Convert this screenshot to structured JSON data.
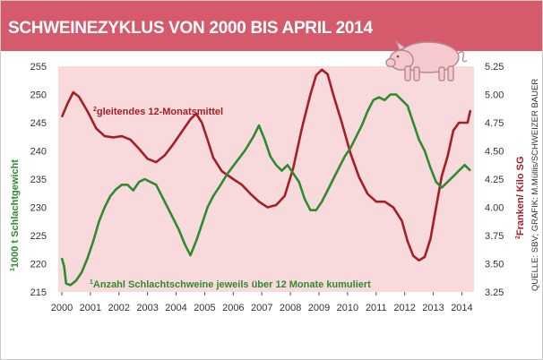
{
  "chart_data": {
    "type": "line",
    "title": "SCHWEINEZYKLUS VON 2000 BIS APRIL 2014",
    "source": "QUELLE: SBV; GRAFIK: M.Müllis/SCHWEIZER BAUER",
    "x_ticks": [
      "2000",
      "2001",
      "2002",
      "2003",
      "2004",
      "2005",
      "2006",
      "2007",
      "2008",
      "2009",
      "2010",
      "2011",
      "2012",
      "2013",
      "2014"
    ],
    "xlim": [
      2000,
      2014.3
    ],
    "left_axis": {
      "label_sup": "1",
      "label": "1000 t Schlachtgewicht",
      "ylim": [
        215,
        255
      ],
      "ticks": [
        "255",
        "250",
        "245",
        "240",
        "235",
        "230",
        "225",
        "220",
        "215"
      ]
    },
    "right_axis": {
      "label_sup": "2",
      "label": "Franken/ Kilo SG",
      "ylim": [
        3.25,
        5.25
      ],
      "ticks": [
        "5.25",
        "5.00",
        "4.75",
        "4.50",
        "4.25",
        "4.00",
        "3.75",
        "3.50",
        "3.25"
      ]
    },
    "series": [
      {
        "name": "gleitendes 12-Monatsmittel",
        "sup": "2",
        "axis": "right",
        "color": "#a51e24",
        "points": [
          [
            2000.0,
            4.8
          ],
          [
            2000.2,
            4.92
          ],
          [
            2000.4,
            5.02
          ],
          [
            2000.6,
            4.98
          ],
          [
            2000.9,
            4.85
          ],
          [
            2001.2,
            4.7
          ],
          [
            2001.5,
            4.63
          ],
          [
            2001.8,
            4.62
          ],
          [
            2002.1,
            4.63
          ],
          [
            2002.4,
            4.6
          ],
          [
            2002.7,
            4.52
          ],
          [
            2003.0,
            4.43
          ],
          [
            2003.3,
            4.4
          ],
          [
            2003.6,
            4.46
          ],
          [
            2003.9,
            4.56
          ],
          [
            2004.2,
            4.67
          ],
          [
            2004.5,
            4.78
          ],
          [
            2004.7,
            4.83
          ],
          [
            2004.9,
            4.75
          ],
          [
            2005.1,
            4.6
          ],
          [
            2005.3,
            4.44
          ],
          [
            2005.6,
            4.32
          ],
          [
            2006.0,
            4.25
          ],
          [
            2006.3,
            4.2
          ],
          [
            2006.6,
            4.12
          ],
          [
            2006.9,
            4.05
          ],
          [
            2007.2,
            4.0
          ],
          [
            2007.5,
            4.02
          ],
          [
            2007.8,
            4.1
          ],
          [
            2008.1,
            4.35
          ],
          [
            2008.4,
            4.7
          ],
          [
            2008.7,
            5.0
          ],
          [
            2008.9,
            5.17
          ],
          [
            2009.1,
            5.22
          ],
          [
            2009.3,
            5.18
          ],
          [
            2009.5,
            5.0
          ],
          [
            2009.8,
            4.75
          ],
          [
            2010.1,
            4.48
          ],
          [
            2010.4,
            4.27
          ],
          [
            2010.7,
            4.12
          ],
          [
            2011.0,
            4.05
          ],
          [
            2011.3,
            4.05
          ],
          [
            2011.6,
            4.0
          ],
          [
            2011.9,
            3.88
          ],
          [
            2012.1,
            3.7
          ],
          [
            2012.3,
            3.57
          ],
          [
            2012.5,
            3.53
          ],
          [
            2012.7,
            3.56
          ],
          [
            2012.9,
            3.72
          ],
          [
            2013.1,
            4.0
          ],
          [
            2013.3,
            4.28
          ],
          [
            2013.5,
            4.45
          ],
          [
            2013.7,
            4.68
          ],
          [
            2013.9,
            4.75
          ],
          [
            2014.1,
            4.75
          ],
          [
            2014.2,
            4.75
          ],
          [
            2014.3,
            4.86
          ]
        ]
      },
      {
        "name": "Anzahl Schlachtschweine jeweils über 12 Monate kumuliert",
        "sup": "1",
        "axis": "left",
        "color": "#2e8b2e",
        "points": [
          [
            2000.0,
            221.0
          ],
          [
            2000.08,
            219.5
          ],
          [
            2000.15,
            216.5
          ],
          [
            2000.3,
            216.2
          ],
          [
            2000.5,
            217.0
          ],
          [
            2000.7,
            218.5
          ],
          [
            2000.9,
            221.0
          ],
          [
            2001.1,
            224.0
          ],
          [
            2001.3,
            227.5
          ],
          [
            2001.5,
            230.0
          ],
          [
            2001.7,
            232.0
          ],
          [
            2001.9,
            233.2
          ],
          [
            2002.1,
            234.0
          ],
          [
            2002.3,
            234.0
          ],
          [
            2002.5,
            233.0
          ],
          [
            2002.7,
            234.5
          ],
          [
            2002.9,
            235.0
          ],
          [
            2003.1,
            234.5
          ],
          [
            2003.3,
            234.0
          ],
          [
            2003.5,
            232.0
          ],
          [
            2003.7,
            230.0
          ],
          [
            2003.9,
            228.0
          ],
          [
            2004.1,
            226.0
          ],
          [
            2004.3,
            223.5
          ],
          [
            2004.5,
            221.5
          ],
          [
            2004.7,
            224.0
          ],
          [
            2004.9,
            227.0
          ],
          [
            2005.1,
            230.0
          ],
          [
            2005.3,
            232.0
          ],
          [
            2005.5,
            233.5
          ],
          [
            2005.8,
            236.0
          ],
          [
            2006.1,
            238.0
          ],
          [
            2006.4,
            240.0
          ],
          [
            2006.7,
            242.5
          ],
          [
            2006.9,
            244.5
          ],
          [
            2007.1,
            242.0
          ],
          [
            2007.3,
            239.0
          ],
          [
            2007.5,
            237.5
          ],
          [
            2007.7,
            236.5
          ],
          [
            2007.9,
            237.5
          ],
          [
            2008.1,
            236.0
          ],
          [
            2008.3,
            234.5
          ],
          [
            2008.5,
            231.5
          ],
          [
            2008.7,
            229.5
          ],
          [
            2008.9,
            229.5
          ],
          [
            2009.1,
            231.0
          ],
          [
            2009.3,
            233.0
          ],
          [
            2009.5,
            235.0
          ],
          [
            2009.7,
            237.0
          ],
          [
            2009.9,
            239.0
          ],
          [
            2010.1,
            240.5
          ],
          [
            2010.3,
            242.5
          ],
          [
            2010.5,
            244.5
          ],
          [
            2010.7,
            247.0
          ],
          [
            2010.9,
            249.0
          ],
          [
            2011.1,
            249.5
          ],
          [
            2011.3,
            249.0
          ],
          [
            2011.5,
            250.0
          ],
          [
            2011.7,
            250.0
          ],
          [
            2011.9,
            249.0
          ],
          [
            2012.1,
            248.0
          ],
          [
            2012.3,
            245.0
          ],
          [
            2012.5,
            242.0
          ],
          [
            2012.7,
            240.0
          ],
          [
            2012.9,
            237.0
          ],
          [
            2013.1,
            234.5
          ],
          [
            2013.3,
            233.5
          ],
          [
            2013.5,
            234.5
          ],
          [
            2013.7,
            235.5
          ],
          [
            2013.9,
            236.5
          ],
          [
            2014.1,
            237.5
          ],
          [
            2014.3,
            236.5
          ]
        ]
      }
    ]
  },
  "annotations": {
    "red_label": "gleitendes 12-Monatsmittel",
    "red_sup": "2",
    "green_label": "Anzahl Schlachtschweine jeweils über 12 Monate kumuliert",
    "green_sup": "1"
  },
  "colors": {
    "banner": "#d45a6c",
    "plot_bg": "#f8dadd",
    "red_series": "#a51e24",
    "green_series": "#2e8b2e"
  }
}
